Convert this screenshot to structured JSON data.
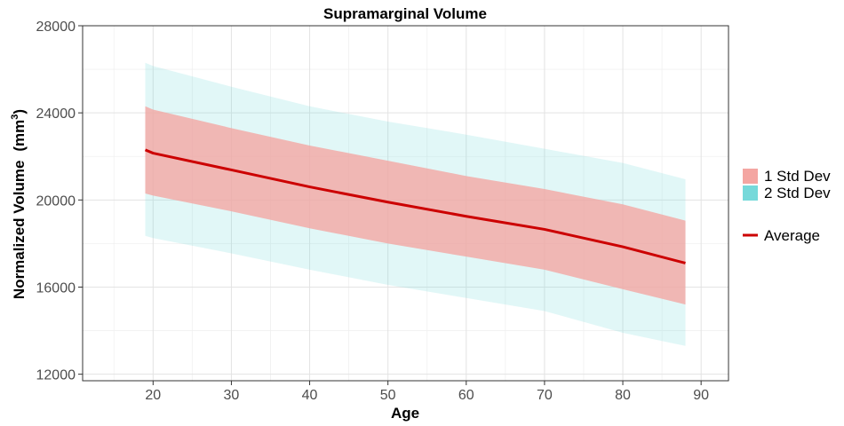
{
  "chart_data": {
    "type": "area",
    "title": "Supramarginal Volume",
    "xlabel": "Age",
    "ylabel": "Normalized Volume",
    "ylabel_unit": "mm",
    "ylabel_unit_exp": "3",
    "xlim": [
      11,
      93.5
    ],
    "ylim": [
      11700,
      28000
    ],
    "xticks": [
      20,
      30,
      40,
      50,
      60,
      70,
      80,
      90
    ],
    "yticks": [
      12000,
      16000,
      20000,
      24000,
      28000
    ],
    "grid": true,
    "legend_position": "right",
    "colors": {
      "sd1": "#f4a6a2",
      "sd2": "#76d9da",
      "average": "#cc0000"
    },
    "series": [
      {
        "name": "Average",
        "x": [
          19,
          20,
          30,
          40,
          50,
          60,
          70,
          80,
          88
        ],
        "y": [
          22300,
          22150,
          21380,
          20600,
          19900,
          19250,
          18650,
          17850,
          17100
        ]
      },
      {
        "name": "1 Std Dev",
        "x": [
          19,
          20,
          30,
          40,
          50,
          60,
          70,
          80,
          88
        ],
        "lower": [
          20300,
          20200,
          19480,
          18700,
          18000,
          17400,
          16800,
          15900,
          15200
        ],
        "upper": [
          24300,
          24150,
          23300,
          22500,
          21800,
          21100,
          20500,
          19800,
          19050
        ]
      },
      {
        "name": "2 Std Dev",
        "x": [
          19,
          20,
          30,
          40,
          50,
          60,
          70,
          80,
          88
        ],
        "lower": [
          18350,
          18250,
          17550,
          16800,
          16100,
          15500,
          14900,
          13900,
          13300
        ],
        "upper": [
          26300,
          26150,
          25200,
          24300,
          23600,
          23000,
          22350,
          21700,
          20950
        ]
      }
    ],
    "legend": {
      "fill_items": [
        "1 Std Dev",
        "2 Std Dev"
      ],
      "line_items": [
        "Average"
      ]
    }
  }
}
